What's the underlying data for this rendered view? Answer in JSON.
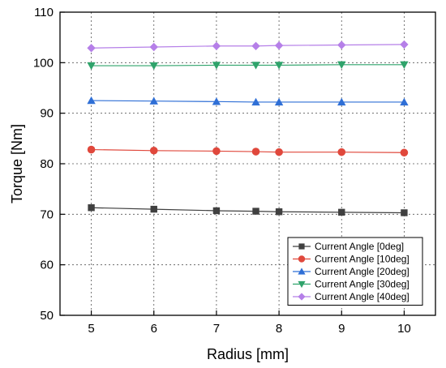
{
  "chart_data": {
    "type": "line",
    "xlabel": "Radius [mm]",
    "ylabel": "Torque [Nm]",
    "xlim": [
      4.5,
      10.5
    ],
    "ylim": [
      50,
      110
    ],
    "x_ticks": [
      5,
      6,
      7,
      8,
      9,
      10
    ],
    "y_ticks": [
      50,
      60,
      70,
      80,
      90,
      100,
      110
    ],
    "grid": true,
    "legend_position": "bottom-right",
    "x": [
      5,
      6,
      7,
      7.63,
      8,
      9,
      10
    ],
    "series": [
      {
        "name": "Current Angle [0deg]",
        "marker": "square",
        "color": "#404040",
        "values": [
          71.3,
          71.0,
          70.7,
          70.6,
          70.5,
          70.4,
          70.3
        ]
      },
      {
        "name": "Current Angle [10deg]",
        "marker": "circle",
        "color": "#e0483c",
        "values": [
          82.8,
          82.6,
          82.5,
          82.4,
          82.3,
          82.3,
          82.2
        ]
      },
      {
        "name": "Current Angle [20deg]",
        "marker": "triangle-up",
        "color": "#2f6fd6",
        "values": [
          92.5,
          92.4,
          92.3,
          92.2,
          92.2,
          92.2,
          92.2
        ]
      },
      {
        "name": "Current Angle [30deg]",
        "marker": "triangle-down",
        "color": "#2fa36b",
        "values": [
          99.4,
          99.4,
          99.5,
          99.5,
          99.5,
          99.6,
          99.6
        ]
      },
      {
        "name": "Current Angle [40deg]",
        "marker": "diamond",
        "color": "#b57fe8",
        "values": [
          102.9,
          103.1,
          103.3,
          103.3,
          103.4,
          103.5,
          103.6
        ]
      }
    ]
  }
}
